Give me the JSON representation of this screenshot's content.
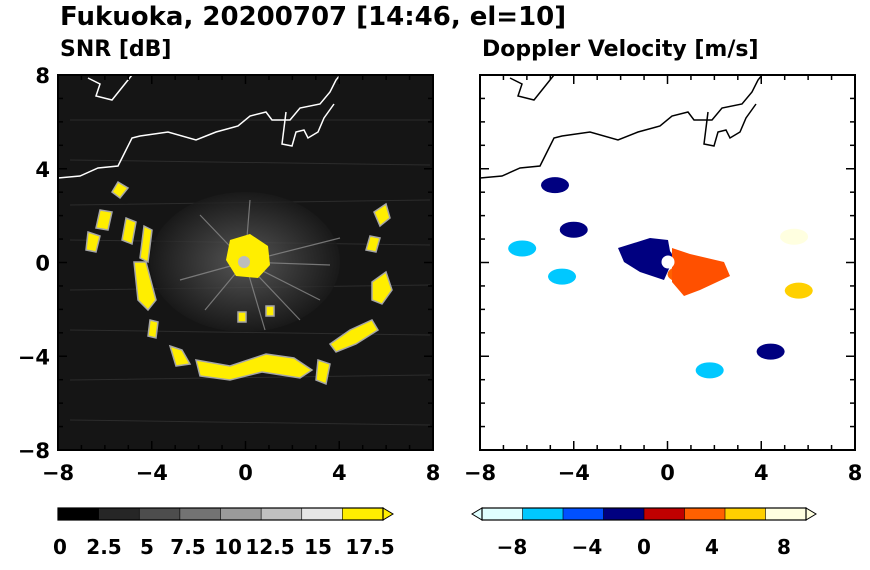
{
  "figure": {
    "title": "Fukuoka, 20200707 [14:46, el=10]"
  },
  "chart_data": [
    {
      "type": "heatmap",
      "title": "SNR [dB]",
      "xlim": [
        -8,
        8
      ],
      "ylim": [
        -8,
        8
      ],
      "x_ticks": [
        "−8",
        "−4",
        "0",
        "4",
        "8"
      ],
      "y_ticks": [
        "8",
        "4",
        "0",
        "−4",
        "−8"
      ],
      "background": "#151515",
      "colorbar": {
        "min": 0,
        "max": 17.5,
        "extend": "max",
        "tick_labels": [
          "0",
          "2.5",
          "5",
          "7.5",
          "10",
          "12.5",
          "15",
          "17.5"
        ],
        "colors": [
          "#000000",
          "#262626",
          "#4d4d4d",
          "#737373",
          "#9a9a9a",
          "#c0c0c0",
          "#e6e6e6",
          "#ffee00"
        ]
      },
      "echo_ring": {
        "center": [
          0,
          -0.9
        ],
        "radius_x": 6.6,
        "radius_y": 5.4,
        "value": "high"
      }
    },
    {
      "type": "heatmap",
      "title": "Doppler Velocity [m/s]",
      "xlim": [
        -8,
        8
      ],
      "ylim": [
        -8,
        8
      ],
      "x_ticks": [
        "−8",
        "−4",
        "0",
        "4",
        "8"
      ],
      "y_ticks": [],
      "background": "#ffffff",
      "colorbar": {
        "min": -10,
        "max": 10,
        "extend": "both",
        "tick_labels": [
          "−8",
          "−4",
          "0",
          "4",
          "8"
        ],
        "colors": [
          "#e0ffff",
          "#00c8ff",
          "#0050ff",
          "#000080",
          "#c00000",
          "#ff6000",
          "#ffd000",
          "#ffffe0"
        ]
      },
      "regions": [
        {
          "x": -6.2,
          "y": 0.6,
          "v": -6
        },
        {
          "x": -4.5,
          "y": -0.6,
          "v": -6
        },
        {
          "x": -4.0,
          "y": 1.4,
          "v": -1
        },
        {
          "x": -4.8,
          "y": 3.3,
          "v": -2
        },
        {
          "x": 1.8,
          "y": -4.6,
          "v": -7
        },
        {
          "x": -0.4,
          "y": 0.3,
          "v": -1
        },
        {
          "x": 0.6,
          "y": -0.5,
          "v": 3
        },
        {
          "x": 5.6,
          "y": -1.2,
          "v": 6
        },
        {
          "x": 5.4,
          "y": 1.1,
          "v": 9
        },
        {
          "x": 4.4,
          "y": -3.8,
          "v": -2
        }
      ]
    }
  ]
}
